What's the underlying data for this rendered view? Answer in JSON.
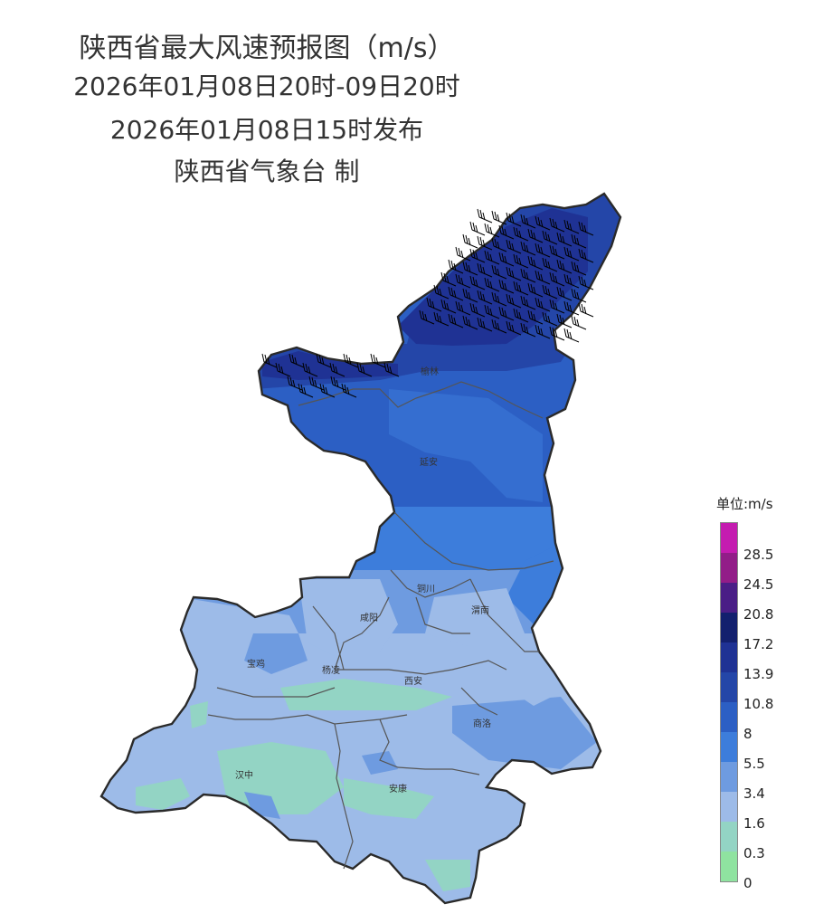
{
  "titles": {
    "main": "陕西省最大风速预报图（m/s）",
    "period": "2026年01月08日20时-09日20时",
    "issued": "2026年01月08日15时发布",
    "issuer": "陕西省气象台 制"
  },
  "legend": {
    "unit": "单位:m/s",
    "levels": [
      {
        "label": "0",
        "color": "#8fe3a0"
      },
      {
        "label": "0.3",
        "color": "#93d4c4"
      },
      {
        "label": "1.6",
        "color": "#9dbbe8"
      },
      {
        "label": "3.4",
        "color": "#6e9be0"
      },
      {
        "label": "5.5",
        "color": "#3d7ddb"
      },
      {
        "label": "8",
        "color": "#2c5fc4"
      },
      {
        "label": "10.8",
        "color": "#2446a8"
      },
      {
        "label": "13.9",
        "color": "#1f3294"
      },
      {
        "label": "17.2",
        "color": "#13206e"
      },
      {
        "label": "20.8",
        "color": "#4a1e86"
      },
      {
        "label": "24.5",
        "color": "#921d88"
      },
      {
        "label": "28.5",
        "color": "#c41cb0"
      }
    ]
  },
  "cities": [
    "榆林",
    "延安",
    "铜川",
    "咸阳",
    "渭南",
    "宝鸡",
    "杨凌",
    "西安",
    "商洛",
    "汉中",
    "安康"
  ]
}
